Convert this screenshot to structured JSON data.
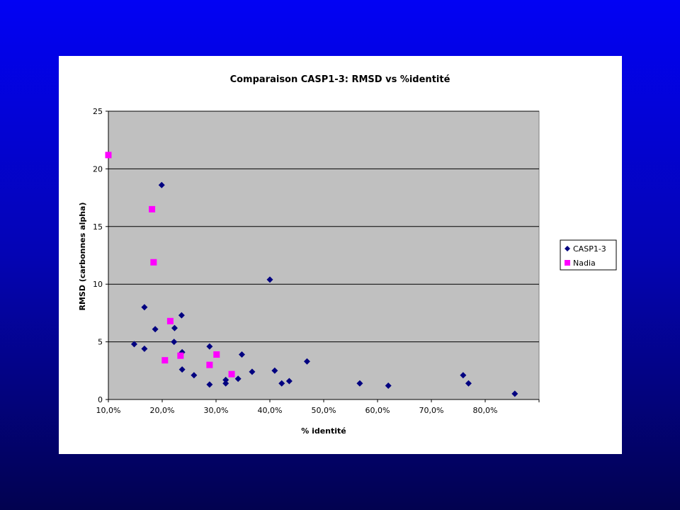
{
  "chart_data": {
    "type": "scatter",
    "title": "Comparaison CASP1-3: RMSD vs %identité",
    "xlabel": "% identité",
    "ylabel": "RMSD (carbonnes alpha)",
    "xlim": [
      0.1,
      0.9
    ],
    "ylim": [
      0,
      25
    ],
    "x_ticks": [
      0.1,
      0.2,
      0.3,
      0.4,
      0.5,
      0.6,
      0.7,
      0.8
    ],
    "x_tick_labels": [
      "10,0%",
      "20,0%",
      "30,0%",
      "40,0%",
      "50,0%",
      "60,0%",
      "70,0%",
      "80,0%"
    ],
    "y_ticks": [
      0,
      5,
      10,
      15,
      20,
      25
    ],
    "y_tick_labels": [
      "0",
      "5",
      "10",
      "15",
      "20",
      "25"
    ],
    "grid": "horizontal",
    "plot_background": "#c0c0c0",
    "legend_position": "right",
    "series": [
      {
        "name": "CASP1-3",
        "marker": "diamond",
        "color": "#000080",
        "points": [
          [
            0.148,
            4.8
          ],
          [
            0.167,
            8.0
          ],
          [
            0.167,
            4.4
          ],
          [
            0.187,
            6.1
          ],
          [
            0.199,
            18.6
          ],
          [
            0.222,
            5.0
          ],
          [
            0.223,
            6.2
          ],
          [
            0.236,
            7.3
          ],
          [
            0.237,
            4.1
          ],
          [
            0.237,
            2.6
          ],
          [
            0.259,
            2.1
          ],
          [
            0.288,
            4.6
          ],
          [
            0.288,
            1.3
          ],
          [
            0.318,
            1.4
          ],
          [
            0.318,
            1.7
          ],
          [
            0.341,
            1.8
          ],
          [
            0.348,
            3.9
          ],
          [
            0.367,
            2.4
          ],
          [
            0.4,
            10.4
          ],
          [
            0.409,
            2.5
          ],
          [
            0.422,
            1.4
          ],
          [
            0.436,
            1.6
          ],
          [
            0.469,
            3.3
          ],
          [
            0.567,
            1.4
          ],
          [
            0.62,
            1.2
          ],
          [
            0.759,
            2.1
          ],
          [
            0.769,
            1.4
          ],
          [
            0.855,
            0.5
          ]
        ]
      },
      {
        "name": "Nadia",
        "marker": "square",
        "color": "#ff00ff",
        "points": [
          [
            0.1,
            21.2
          ],
          [
            0.181,
            16.5
          ],
          [
            0.184,
            11.9
          ],
          [
            0.205,
            3.4
          ],
          [
            0.215,
            6.8
          ],
          [
            0.234,
            3.8
          ],
          [
            0.288,
            3.0
          ],
          [
            0.301,
            3.9
          ],
          [
            0.329,
            2.2
          ]
        ]
      }
    ]
  }
}
